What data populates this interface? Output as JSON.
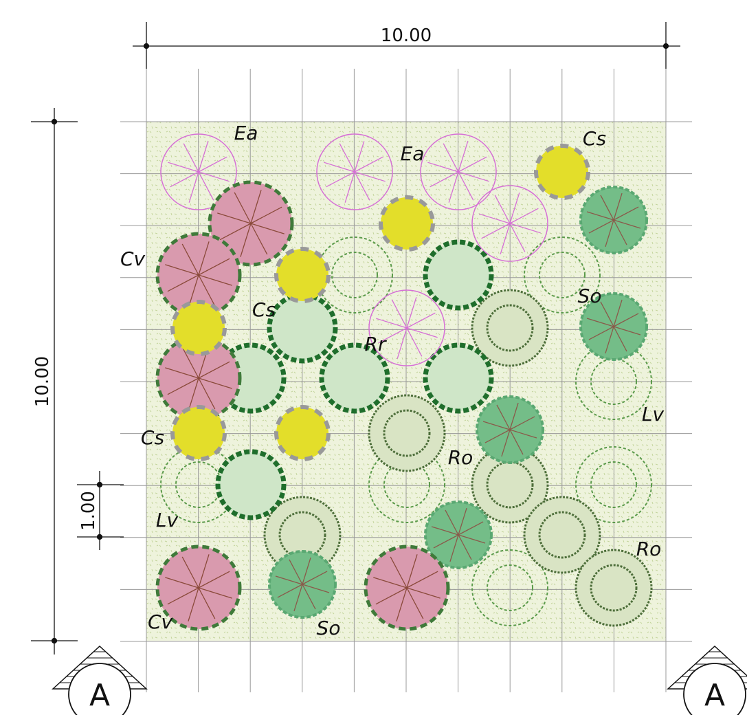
{
  "dimensions": {
    "width": "10.00",
    "height": "10.00",
    "scale": "1.00"
  },
  "labels": [
    "Ea",
    "Ea",
    "Cs",
    "Cv",
    "Cs",
    "So",
    "Rr",
    "Lv",
    "Cs",
    "Ro",
    "Lv",
    "Ro",
    "Cv",
    "So"
  ],
  "sections": [
    "A",
    "A"
  ]
}
